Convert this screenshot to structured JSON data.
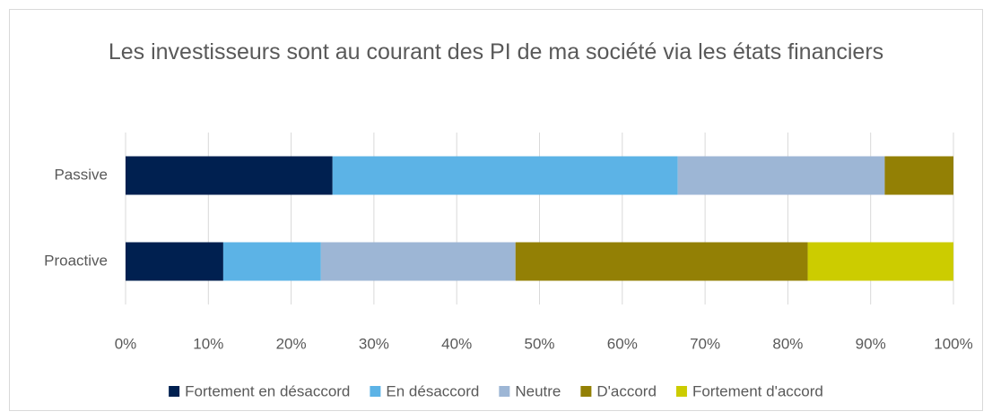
{
  "chart_data": {
    "type": "stacked_bar_horizontal",
    "title": "Les investisseurs sont au courant des PI de ma société via les états financiers",
    "categories": [
      "Passive",
      "Proactive"
    ],
    "series": [
      {
        "name": "Fortement en désaccord",
        "color": "#002050",
        "values": [
          25,
          11.8
        ]
      },
      {
        "name": "En désaccord",
        "color": "#5cb3e6",
        "values": [
          41.7,
          11.8
        ]
      },
      {
        "name": "Neutre",
        "color": "#9db6d5",
        "values": [
          25,
          23.5
        ]
      },
      {
        "name": "D'accord",
        "color": "#938005",
        "values": [
          8.3,
          35.3
        ]
      },
      {
        "name": "Fortement d'accord",
        "color": "#cccc00",
        "values": [
          0,
          17.6
        ]
      }
    ],
    "xlim": [
      0,
      100
    ],
    "xticks": [
      {
        "value": 0,
        "label": "0%"
      },
      {
        "value": 10,
        "label": "10%"
      },
      {
        "value": 20,
        "label": "20%"
      },
      {
        "value": 30,
        "label": "30%"
      },
      {
        "value": 40,
        "label": "40%"
      },
      {
        "value": 50,
        "label": "50%"
      },
      {
        "value": 60,
        "label": "60%"
      },
      {
        "value": 70,
        "label": "70%"
      },
      {
        "value": 80,
        "label": "80%"
      },
      {
        "value": 90,
        "label": "90%"
      },
      {
        "value": 100,
        "label": "100%"
      }
    ],
    "grid": true,
    "legend": "bottom"
  }
}
